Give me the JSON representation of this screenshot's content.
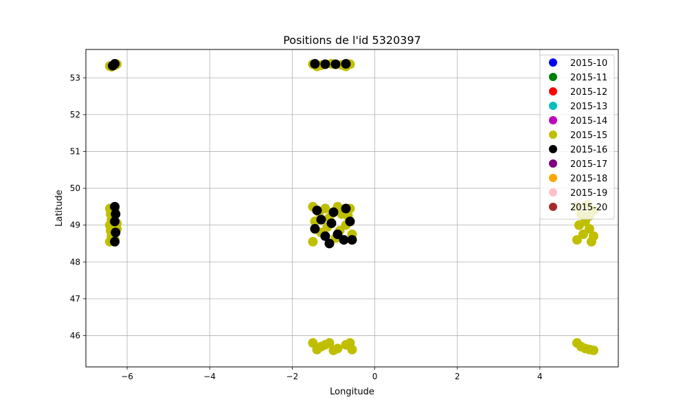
{
  "chart_data": {
    "type": "scatter",
    "title": "Positions de l'id 5320397",
    "xlabel": "Longitude",
    "ylabel": "Latitude",
    "xlim": [
      -7.0,
      5.9
    ],
    "ylim": [
      45.15,
      53.77
    ],
    "xticks": [
      -6,
      -4,
      -2,
      0,
      2,
      4
    ],
    "yticks": [
      46,
      47,
      48,
      49,
      50,
      51,
      52,
      53
    ],
    "xtick_labels": [
      "−6",
      "−4",
      "−2",
      "0",
      "2",
      "4"
    ],
    "ytick_labels": [
      "46",
      "47",
      "48",
      "49",
      "50",
      "51",
      "52",
      "53"
    ],
    "grid": true,
    "legend_position": "top-right",
    "legend": [
      {
        "name": "2015-10",
        "color": "#0000ff"
      },
      {
        "name": "2015-11",
        "color": "#008000"
      },
      {
        "name": "2015-12",
        "color": "#ff0000"
      },
      {
        "name": "2015-13",
        "color": "#00bfbf"
      },
      {
        "name": "2015-14",
        "color": "#bf00bf"
      },
      {
        "name": "2015-15",
        "color": "#bfbf00"
      },
      {
        "name": "2015-16",
        "color": "#000000"
      },
      {
        "name": "2015-17",
        "color": "#800080"
      },
      {
        "name": "2015-18",
        "color": "#ffa500"
      },
      {
        "name": "2015-19",
        "color": "#ffc0cb"
      },
      {
        "name": "2015-20",
        "color": "#a52a2a"
      }
    ],
    "series": [
      {
        "name": "2015-15",
        "color": "#bfbf00",
        "points": [
          [
            -6.38,
            53.3
          ],
          [
            -6.3,
            53.34
          ],
          [
            -6.25,
            53.37
          ],
          [
            -6.42,
            53.32
          ],
          [
            -1.5,
            53.37
          ],
          [
            -1.3,
            53.34
          ],
          [
            -1.05,
            53.38
          ],
          [
            -0.8,
            53.35
          ],
          [
            -0.6,
            53.37
          ],
          [
            -1.4,
            53.31
          ],
          [
            -0.7,
            53.31
          ],
          [
            -6.42,
            49.45
          ],
          [
            -6.4,
            49.3
          ],
          [
            -6.38,
            49.15
          ],
          [
            -6.42,
            49.0
          ],
          [
            -6.4,
            48.85
          ],
          [
            -6.38,
            48.7
          ],
          [
            -6.42,
            48.55
          ],
          [
            -6.25,
            49.05
          ],
          [
            -6.25,
            48.9
          ],
          [
            -6.3,
            49.4
          ],
          [
            -6.3,
            48.6
          ],
          [
            -1.5,
            49.5
          ],
          [
            -1.2,
            49.45
          ],
          [
            -0.9,
            49.5
          ],
          [
            -0.6,
            49.45
          ],
          [
            -1.45,
            49.1
          ],
          [
            -1.1,
            49.2
          ],
          [
            -0.7,
            49.0
          ],
          [
            -1.3,
            48.8
          ],
          [
            -0.95,
            48.65
          ],
          [
            -0.55,
            48.75
          ],
          [
            -1.5,
            48.55
          ],
          [
            -0.8,
            49.3
          ],
          [
            -1.15,
            48.95
          ],
          [
            -0.65,
            49.25
          ],
          [
            -1.35,
            49.35
          ],
          [
            -0.85,
            48.85
          ],
          [
            4.9,
            49.5
          ],
          [
            5.0,
            49.3
          ],
          [
            5.1,
            49.1
          ],
          [
            5.2,
            48.9
          ],
          [
            5.3,
            48.7
          ],
          [
            4.9,
            48.6
          ],
          [
            5.15,
            49.55
          ],
          [
            5.3,
            49.4
          ],
          [
            4.95,
            49.0
          ],
          [
            5.25,
            48.55
          ],
          [
            5.05,
            48.75
          ],
          [
            5.2,
            49.25
          ],
          [
            -1.5,
            45.8
          ],
          [
            -1.3,
            45.7
          ],
          [
            -1.1,
            45.8
          ],
          [
            -0.9,
            45.65
          ],
          [
            -0.7,
            45.75
          ],
          [
            -0.55,
            45.62
          ],
          [
            -1.4,
            45.62
          ],
          [
            -1.0,
            45.6
          ],
          [
            -0.6,
            45.8
          ],
          [
            -1.2,
            45.75
          ],
          [
            4.9,
            45.8
          ],
          [
            5.0,
            45.7
          ],
          [
            5.1,
            45.65
          ],
          [
            5.2,
            45.62
          ],
          [
            5.3,
            45.6
          ]
        ]
      },
      {
        "name": "2015-16",
        "color": "#000000",
        "points": [
          [
            -6.3,
            53.38
          ],
          [
            -6.35,
            53.33
          ],
          [
            -1.45,
            53.38
          ],
          [
            -1.2,
            53.37
          ],
          [
            -0.95,
            53.37
          ],
          [
            -0.7,
            53.38
          ],
          [
            -6.3,
            49.5
          ],
          [
            -6.28,
            49.3
          ],
          [
            -6.3,
            49.1
          ],
          [
            -6.28,
            48.8
          ],
          [
            -6.3,
            48.55
          ],
          [
            -1.4,
            49.4
          ],
          [
            -1.0,
            49.35
          ],
          [
            -0.6,
            49.1
          ],
          [
            -1.2,
            48.7
          ],
          [
            -0.75,
            48.6
          ],
          [
            -1.45,
            48.9
          ],
          [
            -1.05,
            49.05
          ],
          [
            -0.7,
            49.45
          ],
          [
            -1.3,
            49.15
          ],
          [
            -0.9,
            48.75
          ],
          [
            -0.55,
            48.6
          ],
          [
            -1.1,
            48.5
          ]
        ]
      }
    ]
  }
}
